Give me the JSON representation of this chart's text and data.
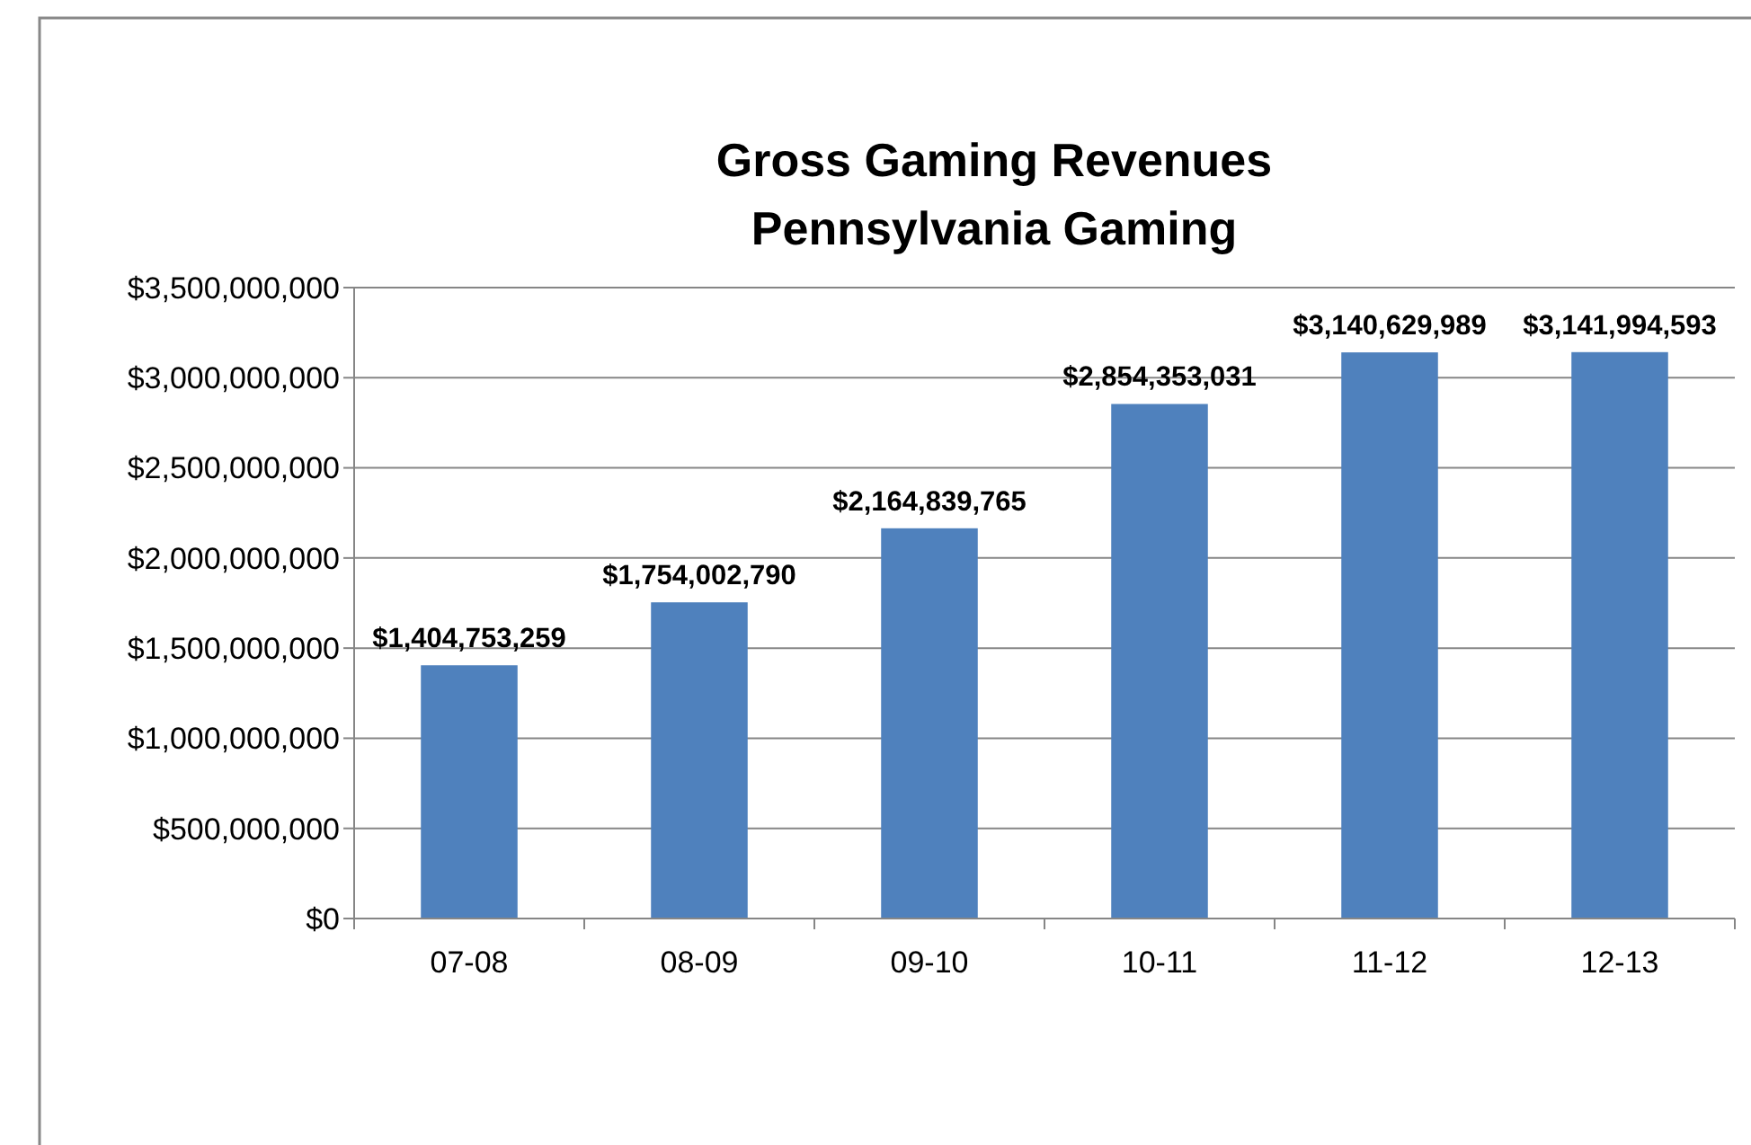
{
  "chart_data": {
    "type": "bar",
    "title": "Gross Gaming Revenues\nPennsylvania Gaming",
    "categories": [
      "07-08",
      "08-09",
      "09-10",
      "10-11",
      "11-12",
      "12-13"
    ],
    "values": [
      1404753259,
      1754002790,
      2164839765,
      2854353031,
      3140629989,
      3141994593
    ],
    "value_labels": [
      "$1,404,753,259",
      "$1,754,002,790",
      "$2,164,839,765",
      "$2,854,353,031",
      "$3,140,629,989",
      "$3,141,994,593"
    ],
    "color": "#4f81bd",
    "grid": "y",
    "ylim": [
      0,
      3500000000
    ],
    "yticks": [
      {
        "value": 0,
        "label": "$0"
      },
      {
        "value": 500000000,
        "label": "$500,000,000"
      },
      {
        "value": 1000000000,
        "label": "$1,000,000,000"
      },
      {
        "value": 1500000000,
        "label": "$1,500,000,000"
      },
      {
        "value": 2000000000,
        "label": "$2,000,000,000"
      },
      {
        "value": 2500000000,
        "label": "$2,500,000,000"
      },
      {
        "value": 3000000000,
        "label": "$3,000,000,000"
      },
      {
        "value": 3500000000,
        "label": "$3,500,000,000"
      }
    ]
  }
}
